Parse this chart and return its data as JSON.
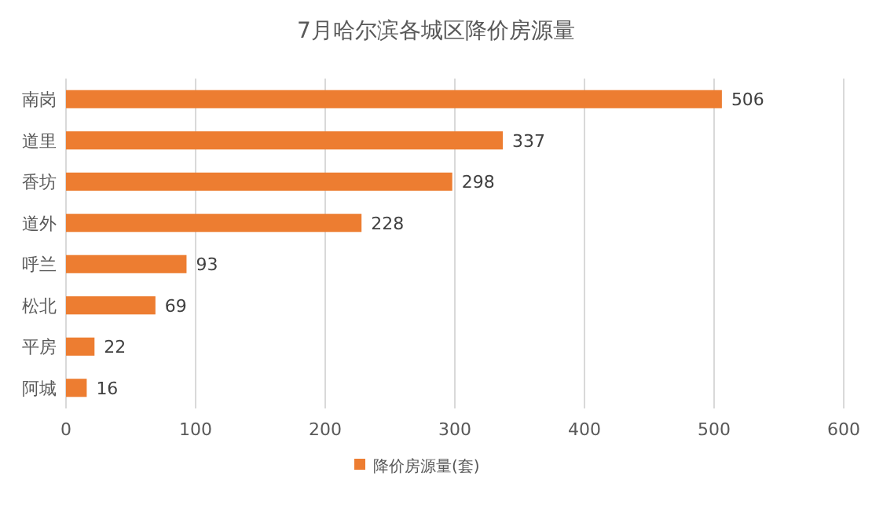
{
  "chart_data": {
    "type": "bar",
    "orientation": "horizontal",
    "title": "7月哈尔滨各城区降价房源量",
    "categories": [
      "南岗",
      "道里",
      "香坊",
      "道外",
      "呼兰",
      "松北",
      "平房",
      "阿城"
    ],
    "series": [
      {
        "name": "降价房源量(套)",
        "color": "#ed7d31",
        "values": [
          506,
          337,
          298,
          228,
          93,
          69,
          22,
          16
        ]
      }
    ],
    "xlim": [
      0,
      600
    ],
    "xticks": [
      0,
      100,
      200,
      300,
      400,
      500,
      600
    ],
    "grid": "x",
    "legend": "bottom",
    "data_labels": true
  }
}
